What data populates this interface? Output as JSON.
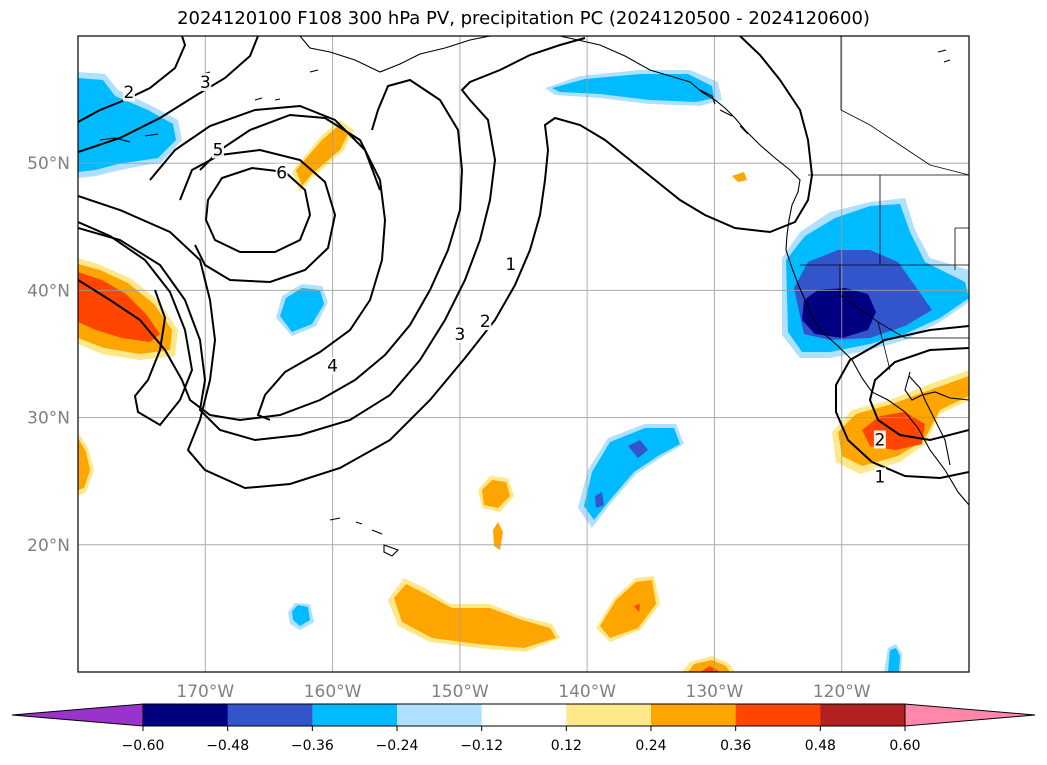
{
  "title": "2024120100 F108 300 hPa PV, precipitation PC (2024120500 - 2024120600)",
  "map": {
    "lon_range": [
      -180,
      -110
    ],
    "lat_range": [
      10,
      60
    ],
    "lon_ticks": [
      {
        "value": -170,
        "label": "170°W"
      },
      {
        "value": -160,
        "label": "160°W"
      },
      {
        "value": -150,
        "label": "150°W"
      },
      {
        "value": -140,
        "label": "140°W"
      },
      {
        "value": -130,
        "label": "130°W"
      },
      {
        "value": -120,
        "label": "120°W"
      }
    ],
    "lat_ticks": [
      {
        "value": 20,
        "label": "20°N"
      },
      {
        "value": 30,
        "label": "30°N"
      },
      {
        "value": 40,
        "label": "40°N"
      },
      {
        "value": 50,
        "label": "50°N"
      }
    ],
    "gridlines": true,
    "pv_contour_labels": [
      {
        "text": "2",
        "lon": -176,
        "lat": 55.5
      },
      {
        "text": "3",
        "lon": -170,
        "lat": 56.3
      },
      {
        "text": "5",
        "lon": -169,
        "lat": 51.0
      },
      {
        "text": "6",
        "lon": -164,
        "lat": 49.2
      },
      {
        "text": "1",
        "lon": -146,
        "lat": 42.0
      },
      {
        "text": "2",
        "lon": -148,
        "lat": 37.5
      },
      {
        "text": "3",
        "lon": -150,
        "lat": 36.5
      },
      {
        "text": "4",
        "lon": -160,
        "lat": 34.0
      },
      {
        "text": "2",
        "lon": -117,
        "lat": 28.2
      },
      {
        "text": "1",
        "lon": -117,
        "lat": 25.3
      }
    ]
  },
  "colorbar": {
    "levels": [
      "-0.60",
      "-0.48",
      "-0.36",
      "-0.24",
      "-0.12",
      "0.12",
      "0.24",
      "0.36",
      "0.48",
      "0.60"
    ],
    "colors": [
      "#9933cc",
      "#000080",
      "#3355cc",
      "#00bbff",
      "#b0e0ff",
      "#ffffff",
      "#ffe88a",
      "#ffa500",
      "#ff4500",
      "#b22222",
      "#ff88aa"
    ],
    "extend": "both"
  }
}
